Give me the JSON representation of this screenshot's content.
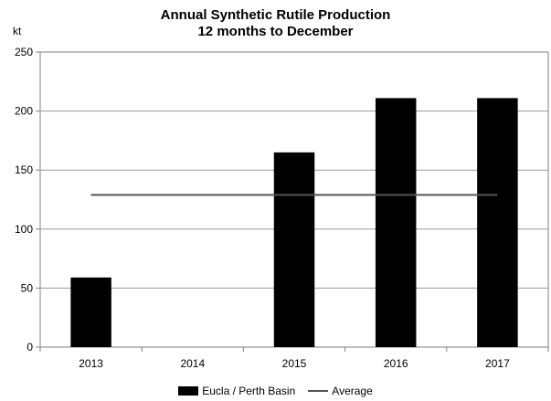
{
  "chart_data": {
    "type": "bar",
    "title": "Annual Synthetic Rutile Production",
    "subtitle": "12 months to December",
    "unit_label": "kt",
    "categories": [
      "2013",
      "2014",
      "2015",
      "2016",
      "2017"
    ],
    "series": [
      {
        "name": "Eucla / Perth Basin",
        "type": "bar",
        "color": "#000000",
        "values": [
          59,
          0,
          165,
          211,
          211
        ]
      },
      {
        "name": "Average",
        "type": "line",
        "color": "#555555",
        "values": [
          129,
          129,
          129,
          129,
          129
        ]
      }
    ],
    "ylim": [
      0,
      250
    ],
    "yticks": [
      0,
      50,
      100,
      150,
      200,
      250
    ],
    "grid": "horizontal",
    "legend_position": "bottom"
  }
}
